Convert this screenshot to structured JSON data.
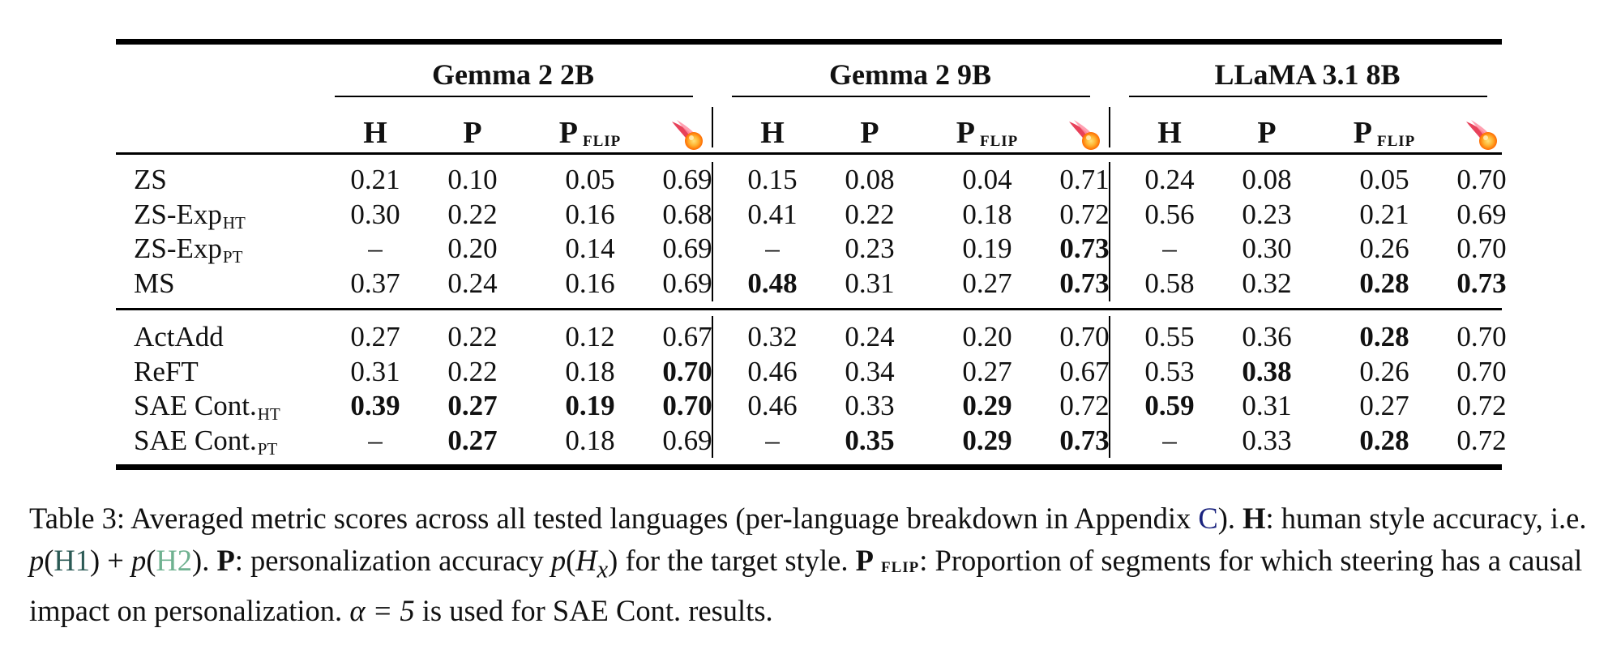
{
  "table": {
    "groups": [
      {
        "name": "Gemma 2 2B"
      },
      {
        "name": "Gemma 2 9B"
      },
      {
        "name": "LLaMA 3.1 8B"
      }
    ],
    "metric_headers": [
      {
        "main": "H",
        "sub": ""
      },
      {
        "main": "P",
        "sub": ""
      },
      {
        "main": "P",
        "sub": "FLIP"
      },
      {
        "main": "",
        "sub": "",
        "icon": "comet-icon"
      }
    ],
    "row_blocks": [
      [
        {
          "label": "ZS",
          "label_sub": "",
          "cells": [
            {
              "v": "0.21",
              "b": false
            },
            {
              "v": "0.10",
              "b": false
            },
            {
              "v": "0.05",
              "b": false
            },
            {
              "v": "0.69",
              "b": false
            },
            {
              "v": "0.15",
              "b": false
            },
            {
              "v": "0.08",
              "b": false
            },
            {
              "v": "0.04",
              "b": false
            },
            {
              "v": "0.71",
              "b": false
            },
            {
              "v": "0.24",
              "b": false
            },
            {
              "v": "0.08",
              "b": false
            },
            {
              "v": "0.05",
              "b": false
            },
            {
              "v": "0.70",
              "b": false
            }
          ]
        },
        {
          "label": "ZS-Exp",
          "label_sub": "HT",
          "cells": [
            {
              "v": "0.30",
              "b": false
            },
            {
              "v": "0.22",
              "b": false
            },
            {
              "v": "0.16",
              "b": false
            },
            {
              "v": "0.68",
              "b": false
            },
            {
              "v": "0.41",
              "b": false
            },
            {
              "v": "0.22",
              "b": false
            },
            {
              "v": "0.18",
              "b": false
            },
            {
              "v": "0.72",
              "b": false
            },
            {
              "v": "0.56",
              "b": false
            },
            {
              "v": "0.23",
              "b": false
            },
            {
              "v": "0.21",
              "b": false
            },
            {
              "v": "0.69",
              "b": false
            }
          ]
        },
        {
          "label": "ZS-Exp",
          "label_sub": "PT",
          "cells": [
            {
              "v": "–",
              "b": false
            },
            {
              "v": "0.20",
              "b": false
            },
            {
              "v": "0.14",
              "b": false
            },
            {
              "v": "0.69",
              "b": false
            },
            {
              "v": "–",
              "b": false
            },
            {
              "v": "0.23",
              "b": false
            },
            {
              "v": "0.19",
              "b": false
            },
            {
              "v": "0.73",
              "b": true
            },
            {
              "v": "–",
              "b": false
            },
            {
              "v": "0.30",
              "b": false
            },
            {
              "v": "0.26",
              "b": false
            },
            {
              "v": "0.70",
              "b": false
            }
          ]
        },
        {
          "label": "MS",
          "label_sub": "",
          "cells": [
            {
              "v": "0.37",
              "b": false
            },
            {
              "v": "0.24",
              "b": false
            },
            {
              "v": "0.16",
              "b": false
            },
            {
              "v": "0.69",
              "b": false
            },
            {
              "v": "0.48",
              "b": true
            },
            {
              "v": "0.31",
              "b": false
            },
            {
              "v": "0.27",
              "b": false
            },
            {
              "v": "0.73",
              "b": true
            },
            {
              "v": "0.58",
              "b": false
            },
            {
              "v": "0.32",
              "b": false
            },
            {
              "v": "0.28",
              "b": true
            },
            {
              "v": "0.73",
              "b": true
            }
          ]
        }
      ],
      [
        {
          "label": "ActAdd",
          "label_sub": "",
          "cells": [
            {
              "v": "0.27",
              "b": false
            },
            {
              "v": "0.22",
              "b": false
            },
            {
              "v": "0.12",
              "b": false
            },
            {
              "v": "0.67",
              "b": false
            },
            {
              "v": "0.32",
              "b": false
            },
            {
              "v": "0.24",
              "b": false
            },
            {
              "v": "0.20",
              "b": false
            },
            {
              "v": "0.70",
              "b": false
            },
            {
              "v": "0.55",
              "b": false
            },
            {
              "v": "0.36",
              "b": false
            },
            {
              "v": "0.28",
              "b": true
            },
            {
              "v": "0.70",
              "b": false
            }
          ]
        },
        {
          "label": "ReFT",
          "label_sub": "",
          "cells": [
            {
              "v": "0.31",
              "b": false
            },
            {
              "v": "0.22",
              "b": false
            },
            {
              "v": "0.18",
              "b": false
            },
            {
              "v": "0.70",
              "b": true
            },
            {
              "v": "0.46",
              "b": false
            },
            {
              "v": "0.34",
              "b": false
            },
            {
              "v": "0.27",
              "b": false
            },
            {
              "v": "0.67",
              "b": false
            },
            {
              "v": "0.53",
              "b": false
            },
            {
              "v": "0.38",
              "b": true
            },
            {
              "v": "0.26",
              "b": false
            },
            {
              "v": "0.70",
              "b": false
            }
          ]
        },
        {
          "label": "SAE Cont.",
          "label_sub": "HT",
          "cells": [
            {
              "v": "0.39",
              "b": true
            },
            {
              "v": "0.27",
              "b": true
            },
            {
              "v": "0.19",
              "b": true
            },
            {
              "v": "0.70",
              "b": true
            },
            {
              "v": "0.46",
              "b": false
            },
            {
              "v": "0.33",
              "b": false
            },
            {
              "v": "0.29",
              "b": true
            },
            {
              "v": "0.72",
              "b": false
            },
            {
              "v": "0.59",
              "b": true
            },
            {
              "v": "0.31",
              "b": false
            },
            {
              "v": "0.27",
              "b": false
            },
            {
              "v": "0.72",
              "b": false
            }
          ]
        },
        {
          "label": "SAE Cont.",
          "label_sub": "PT",
          "cells": [
            {
              "v": "–",
              "b": false
            },
            {
              "v": "0.27",
              "b": true
            },
            {
              "v": "0.18",
              "b": false
            },
            {
              "v": "0.69",
              "b": false
            },
            {
              "v": "–",
              "b": false
            },
            {
              "v": "0.35",
              "b": true
            },
            {
              "v": "0.29",
              "b": true
            },
            {
              "v": "0.73",
              "b": true
            },
            {
              "v": "–",
              "b": false
            },
            {
              "v": "0.33",
              "b": false
            },
            {
              "v": "0.28",
              "b": true
            },
            {
              "v": "0.72",
              "b": false
            }
          ]
        }
      ]
    ]
  },
  "caption": {
    "table_label": "Table 3:",
    "t1": " Averaged metric scores across all tested languages (per-language breakdown in Appendix ",
    "appendix_link": "C",
    "t2": "). ",
    "h_term": "H",
    "t3": ": human style accuracy, i.e. ",
    "p_fn": "p",
    "h1": "H1",
    "plus": " + ",
    "h2": "H2",
    "t4": ". ",
    "p_term": "P",
    "t5": ": personalization accuracy ",
    "p_fn2": "p",
    "hx": "H",
    "hx_sub": "x",
    "t6": " for the target style. ",
    "pflip_main": "P",
    "pflip_sub": "FLIP",
    "t7": ": Proportion of segments for which steering has a causal impact on personalization. ",
    "alpha_expr": "α = 5",
    "t8": " is used for SAE Cont. results."
  }
}
